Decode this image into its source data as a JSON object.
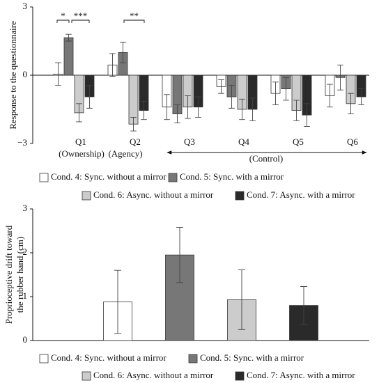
{
  "chart_data": [
    {
      "type": "bar",
      "ylabel": [
        "Response to the questionnaire"
      ],
      "categories": [
        "Q1",
        "Q2",
        "Q3",
        "Q4",
        "Q5",
        "Q6"
      ],
      "sublabels": [
        "(Ownership)",
        "(Agency)",
        "(Control)"
      ],
      "annotations": [
        "*",
        "***",
        "**"
      ],
      "ylim": [
        -3,
        3
      ],
      "yticks": [
        {
          "value": -3,
          "label": "−3"
        },
        0,
        3
      ],
      "series": [
        {
          "name": "Cond. 4: Sync. without a mirror",
          "color": "#ffffff",
          "values": [
            0.05,
            0.45,
            -1.4,
            -0.5,
            -0.8,
            -0.9
          ],
          "errors": [
            0.5,
            0.5,
            0.55,
            0.3,
            0.5,
            0.5
          ]
        },
        {
          "name": "Cond. 5: Sync. with a mirror",
          "color": "#777777",
          "values": [
            1.65,
            1.0,
            -1.7,
            -0.95,
            -0.6,
            -0.1
          ],
          "errors": [
            0.15,
            0.45,
            0.4,
            0.5,
            0.5,
            0.55
          ]
        },
        {
          "name": "Cond. 6: Async. without a mirror",
          "color": "#cccccc",
          "values": [
            -1.65,
            -2.15,
            -1.4,
            -1.5,
            -1.55,
            -1.25
          ],
          "errors": [
            0.4,
            0.3,
            0.5,
            0.45,
            0.45,
            0.45
          ]
        },
        {
          "name": "Cond. 7: Async. with a mirror",
          "color": "#2a2a2a",
          "values": [
            -0.95,
            -1.55,
            -1.4,
            -1.5,
            -1.75,
            -0.95
          ],
          "errors": [
            0.5,
            0.4,
            0.45,
            0.5,
            0.5,
            0.35
          ]
        }
      ]
    },
    {
      "type": "bar",
      "ylabel": [
        "Proprioceptive drift toward",
        "the rubber hand (cm)"
      ],
      "categories": [
        null
      ],
      "ylim": [
        0,
        3
      ],
      "yticks": [
        0,
        1,
        2,
        3
      ],
      "series": [
        {
          "name": "Cond. 4: Sync. without a mirror",
          "color": "#ffffff",
          "values": [
            0.88
          ],
          "errors": [
            0.72
          ]
        },
        {
          "name": "Cond. 5: Sync. with a mirror",
          "color": "#777777",
          "values": [
            1.95
          ],
          "errors": [
            0.63
          ]
        },
        {
          "name": "Cond. 6: Async. without a mirror",
          "color": "#cccccc",
          "values": [
            0.93
          ],
          "errors": [
            0.68
          ]
        },
        {
          "name": "Cond. 7: Async. with a mirror",
          "color": "#2a2a2a",
          "values": [
            0.8
          ],
          "errors": [
            0.43
          ]
        }
      ]
    }
  ]
}
